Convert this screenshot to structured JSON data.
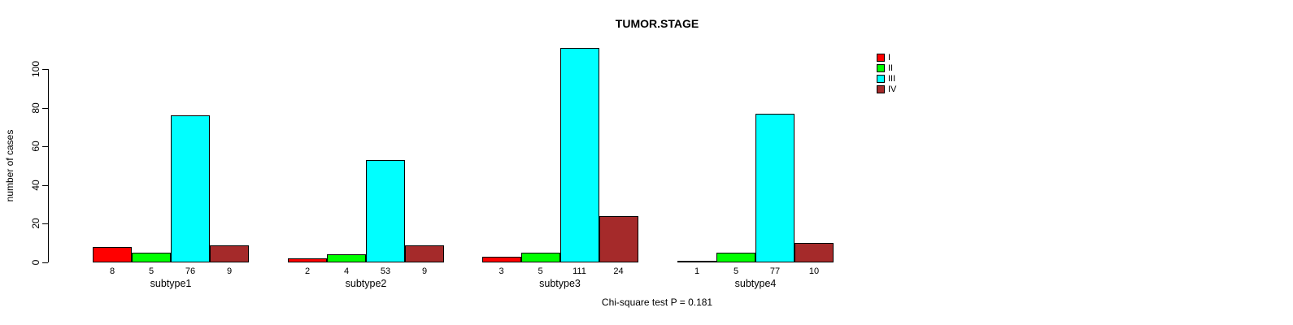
{
  "chart_data": {
    "type": "bar",
    "title": "TUMOR.STAGE",
    "xlabel": "",
    "ylabel": "number of cases",
    "ylim": [
      0,
      100
    ],
    "yticks": [
      0,
      20,
      40,
      60,
      80,
      100
    ],
    "grid": false,
    "legend_position": "top-right",
    "categories": [
      "subtype1",
      "subtype2",
      "subtype3",
      "subtype4"
    ],
    "series": [
      {
        "name": "I",
        "color": "#ff0000",
        "values": [
          8,
          2,
          3,
          1
        ]
      },
      {
        "name": "II",
        "color": "#00ff00",
        "values": [
          5,
          4,
          5,
          5
        ]
      },
      {
        "name": "III",
        "color": "#00ffff",
        "values": [
          76,
          53,
          111,
          77
        ]
      },
      {
        "name": "IV",
        "color": "#a52a2a",
        "values": [
          9,
          9,
          24,
          10
        ]
      }
    ],
    "bar_value_labels": [
      [
        8,
        5,
        76,
        9
      ],
      [
        2,
        4,
        53,
        9
      ],
      [
        3,
        5,
        111,
        24
      ],
      [
        1,
        5,
        77,
        10
      ]
    ],
    "annotation": "Chi-square test P = 0.181"
  },
  "legend": {
    "items": [
      {
        "label": "I",
        "color": "#ff0000"
      },
      {
        "label": "II",
        "color": "#00ff00"
      },
      {
        "label": "III",
        "color": "#00ffff"
      },
      {
        "label": "IV",
        "color": "#a52a2a"
      }
    ]
  },
  "colors": {
    "axis": "#000000",
    "background": "#ffffff",
    "text": "#000000"
  }
}
